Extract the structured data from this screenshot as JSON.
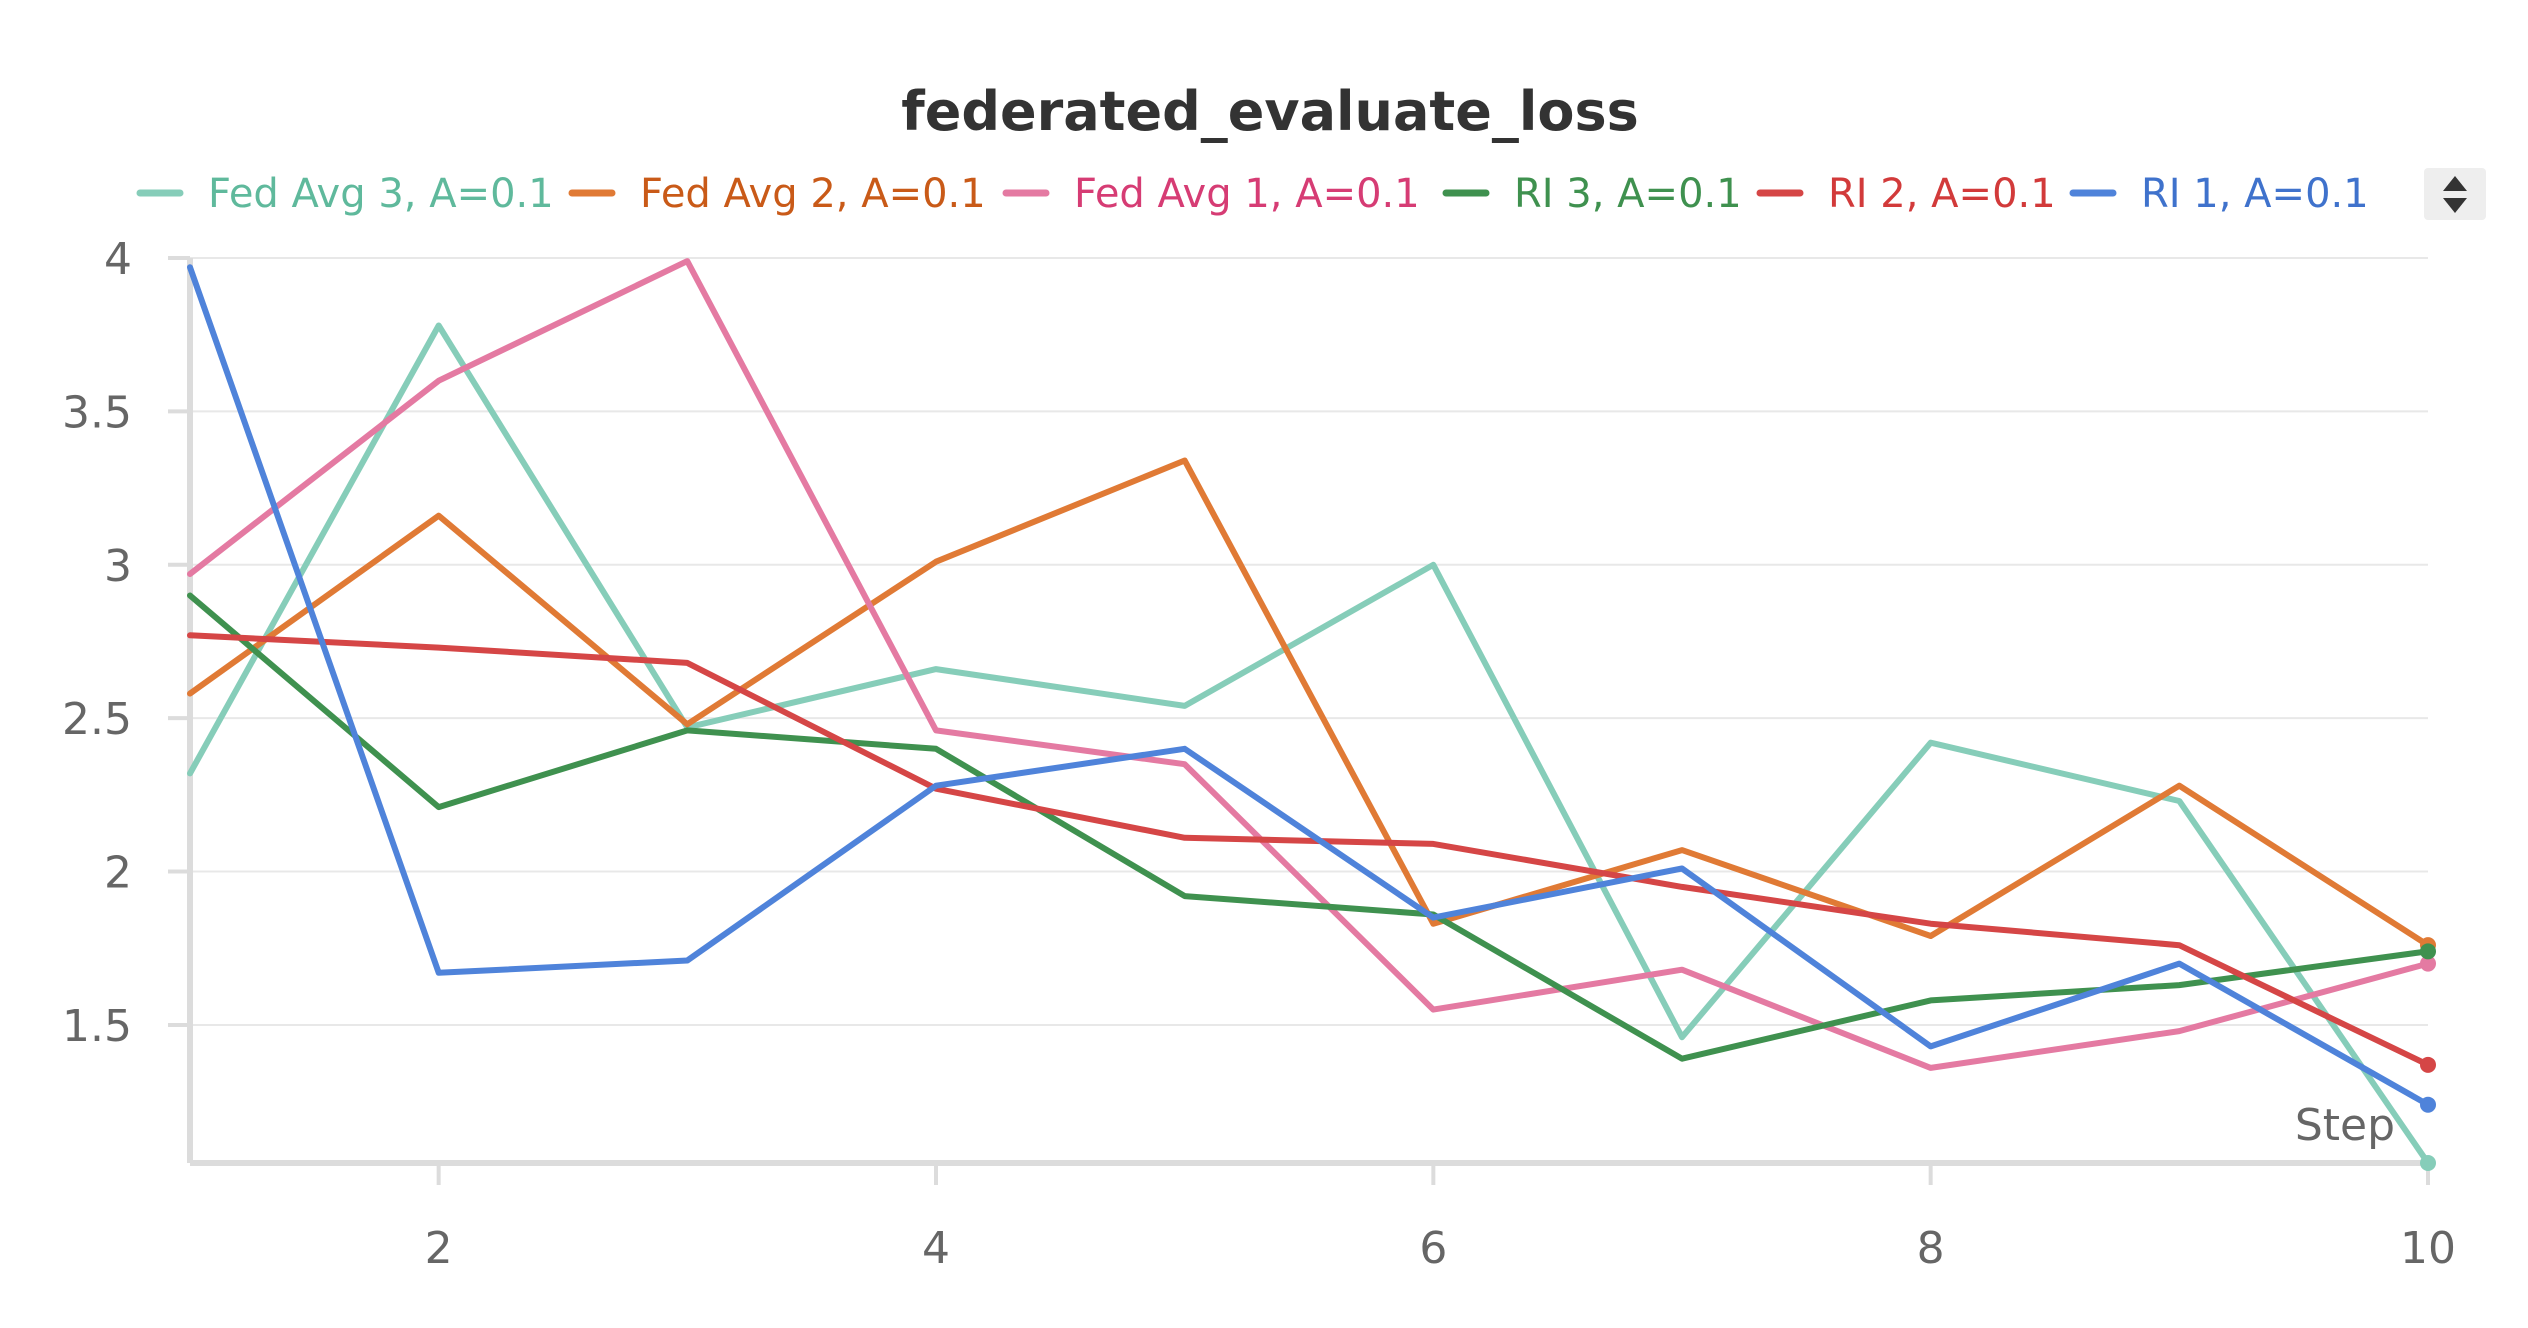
{
  "chart_data": {
    "type": "line",
    "title": "federated_evaluate_loss",
    "xlabel": "Step",
    "ylabel": "",
    "x": [
      1,
      2,
      3,
      4,
      5,
      6,
      7,
      8,
      9,
      10
    ],
    "xlim": [
      1,
      10
    ],
    "ylim": [
      1.05,
      4
    ],
    "xticks": [
      2,
      4,
      6,
      8,
      10
    ],
    "yticks": [
      1.5,
      2,
      2.5,
      3,
      3.5,
      4
    ],
    "grid": true,
    "legend": "top",
    "series": [
      {
        "name": "Fed Avg 3, A=0.1",
        "color": "#86cdb9",
        "values": [
          2.32,
          3.78,
          2.47,
          2.66,
          2.54,
          3.0,
          1.46,
          2.42,
          2.23,
          1.05
        ]
      },
      {
        "name": "Fed Avg 2, A=0.1",
        "color": "#e07a35",
        "values": [
          2.58,
          3.16,
          2.48,
          3.01,
          3.34,
          1.83,
          2.07,
          1.79,
          2.28,
          1.76
        ]
      },
      {
        "name": "Fed Avg 1, A=0.1",
        "color": "#e47aa2",
        "values": [
          2.97,
          3.6,
          3.99,
          2.46,
          2.35,
          1.55,
          1.68,
          1.36,
          1.48,
          1.7
        ]
      },
      {
        "name": "RI 3, A=0.1",
        "color": "#3f914f",
        "values": [
          2.9,
          2.21,
          2.46,
          2.4,
          1.92,
          1.86,
          1.39,
          1.58,
          1.63,
          1.74
        ]
      },
      {
        "name": "RI 2, A=0.1",
        "color": "#d54646",
        "values": [
          2.77,
          2.73,
          2.68,
          2.27,
          2.11,
          2.09,
          1.95,
          1.83,
          1.76,
          1.37
        ]
      },
      {
        "name": "RI 1, A=0.1",
        "color": "#4f83da",
        "values": [
          3.97,
          1.67,
          1.71,
          2.28,
          2.4,
          1.85,
          2.01,
          1.43,
          1.7,
          1.24
        ]
      }
    ]
  },
  "legend_colors": {
    "Fed Avg 3, A=0.1": "#5fb99c",
    "Fed Avg 2, A=0.1": "#c95a18",
    "Fed Avg 1, A=0.1": "#d63c74",
    "RI 3, A=0.1": "#3f914f",
    "RI 2, A=0.1": "#d23a3a",
    "RI 1, A=0.1": "#3f72cc"
  },
  "legend_scroll_icon": "up-down-arrows-icon"
}
